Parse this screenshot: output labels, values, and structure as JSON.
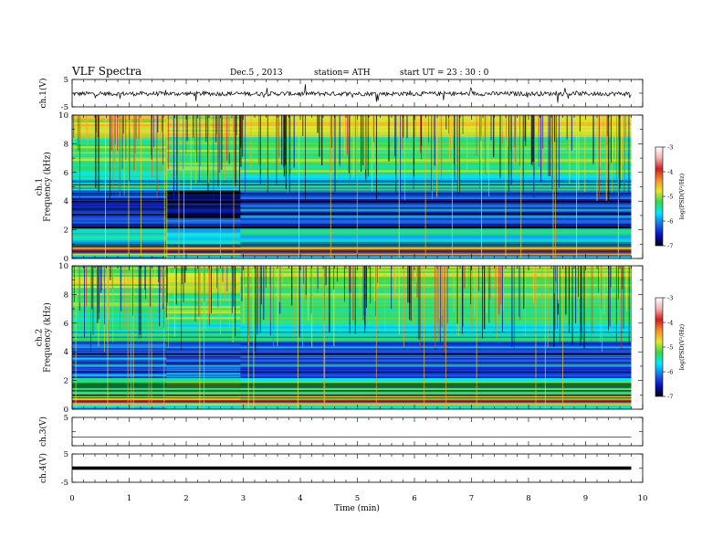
{
  "header": {
    "title": "VLF  Spectra",
    "date": "Dec.5  , 2013",
    "station": "station= ATH",
    "start": "start  UT  =    23 : 30 : 0"
  },
  "xaxis": {
    "label": "Time  (min)",
    "ticks": [
      "0",
      "1",
      "2",
      "3",
      "4",
      "5",
      "6",
      "7",
      "8",
      "9",
      "10"
    ]
  },
  "colorbar": {
    "label": "log(PSD(V²/Hz)",
    "ticks": [
      "-3",
      "-4",
      "-5",
      "-6",
      "-7"
    ],
    "stops": [
      "#000000",
      "#0a10c8",
      "#1e6fe6",
      "#00e8ff",
      "#35d850",
      "#e8e82a",
      "#f0902a",
      "#d02020",
      "#f5b0b0",
      "#ffffff"
    ]
  },
  "chart_data": [
    {
      "type": "line",
      "panel": "ch1-waveform",
      "ylabel": "ch.1(V)",
      "yticks": [
        "5",
        "-5"
      ],
      "ylim": [
        -5,
        5
      ],
      "xlim": [
        0,
        10
      ],
      "data_extent_min": 9.8
    },
    {
      "type": "heatmap",
      "panel": "ch1-spectrogram",
      "ylabel": "ch.1\nFrequency  (kHz)",
      "yticks": [
        "0",
        "2",
        "4",
        "6",
        "8",
        "10"
      ],
      "ylim": [
        0,
        10
      ],
      "xlim": [
        0,
        10
      ],
      "zlim": [
        -7,
        -3
      ],
      "zlabel": "log(PSD(V²/Hz)"
    },
    {
      "type": "heatmap",
      "panel": "ch2-spectrogram",
      "ylabel": "ch.2\nFrequency  (kHz)",
      "yticks": [
        "0",
        "2",
        "4",
        "6",
        "8",
        "10"
      ],
      "ylim": [
        0,
        10
      ],
      "xlim": [
        0,
        10
      ],
      "zlim": [
        -7,
        -3
      ],
      "zlabel": "log(PSD(V²/Hz)"
    },
    {
      "type": "line",
      "panel": "ch3-waveform",
      "ylabel": "ch.3(V)",
      "yticks": [
        "5"
      ],
      "ylim": [
        -5,
        5
      ],
      "xlim": [
        0,
        10
      ]
    },
    {
      "type": "line",
      "panel": "ch4-waveform",
      "ylabel": "ch.4(V)",
      "yticks": [
        "5",
        "-5"
      ],
      "ylim": [
        -5,
        5
      ],
      "xlim": [
        0,
        10
      ]
    }
  ]
}
